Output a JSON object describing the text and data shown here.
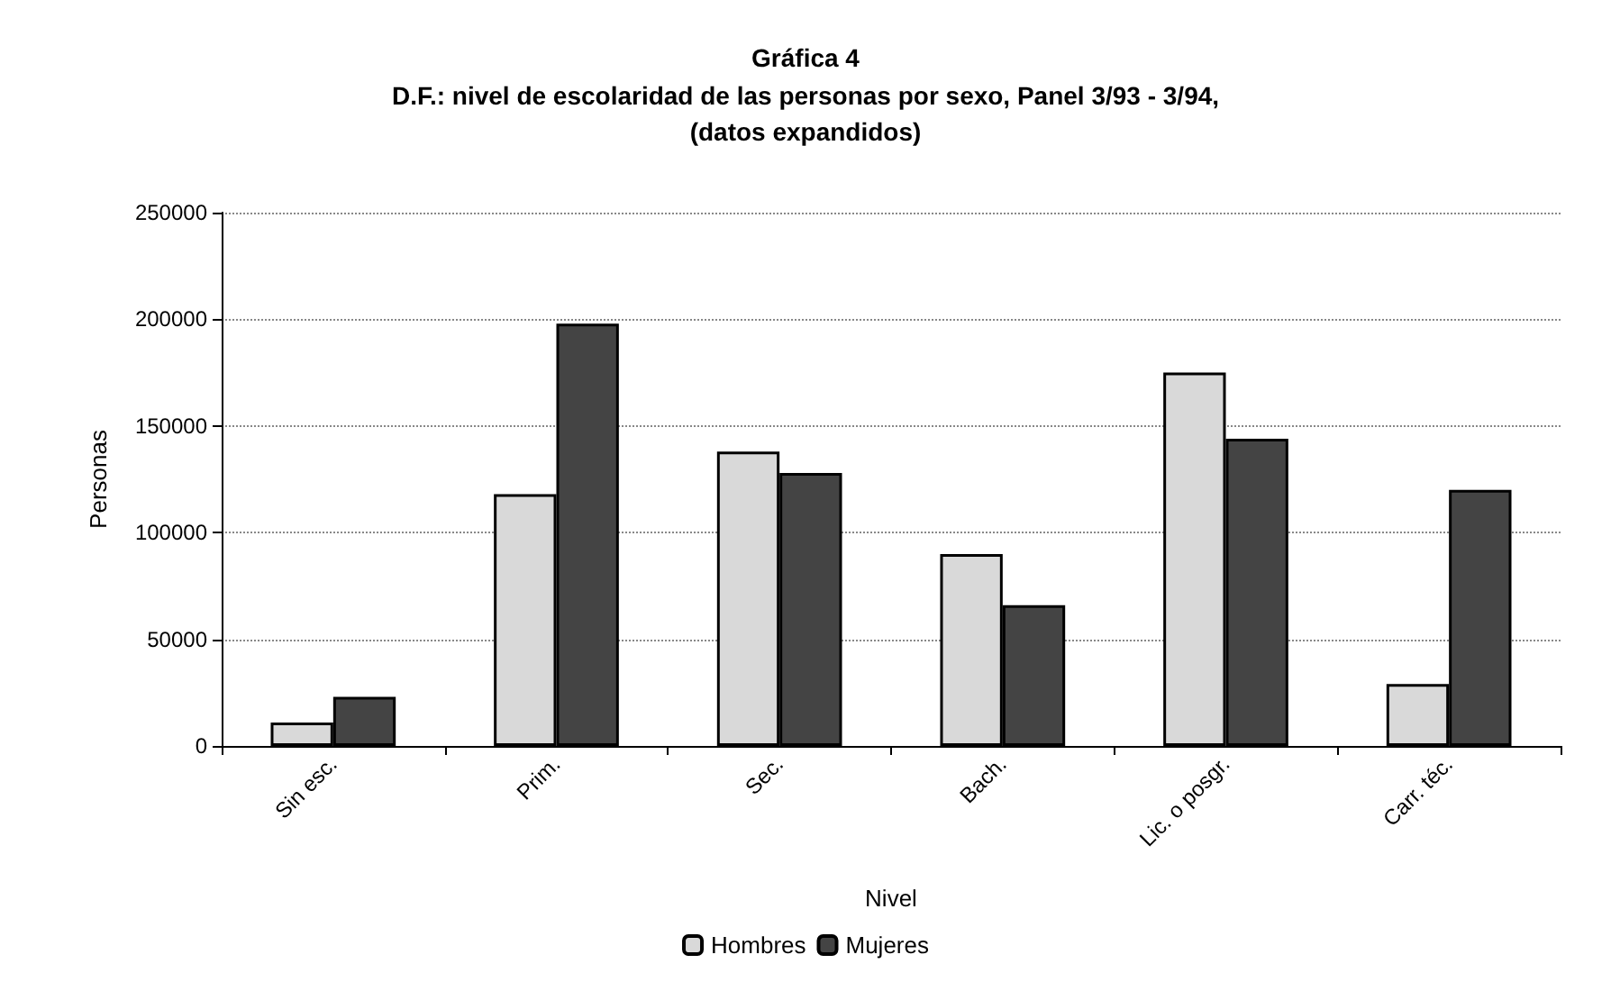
{
  "chart_data": {
    "type": "bar",
    "title": "Gráfica 4",
    "subtitle": "D.F.: nivel de escolaridad de las personas por sexo, Panel 3/93 - 3/94,\n(datos expandidos)",
    "xlabel": "Nivel",
    "ylabel": "Personas",
    "categories": [
      "Sin esc.",
      "Prim.",
      "Sec.",
      "Bach.",
      "Lic. o posgr.",
      "Carr. téc."
    ],
    "series": [
      {
        "name": "Hombres",
        "color": "#d9d9d9",
        "values": [
          11000,
          118000,
          138000,
          90000,
          175000,
          29000
        ]
      },
      {
        "name": "Mujeres",
        "color": "#444444",
        "values": [
          23000,
          198000,
          128000,
          66000,
          144000,
          120000
        ]
      }
    ],
    "ylim": [
      0,
      250000
    ],
    "yticks": [
      0,
      50000,
      100000,
      150000,
      200000,
      250000
    ],
    "grid": "y",
    "legend": "bottom"
  }
}
